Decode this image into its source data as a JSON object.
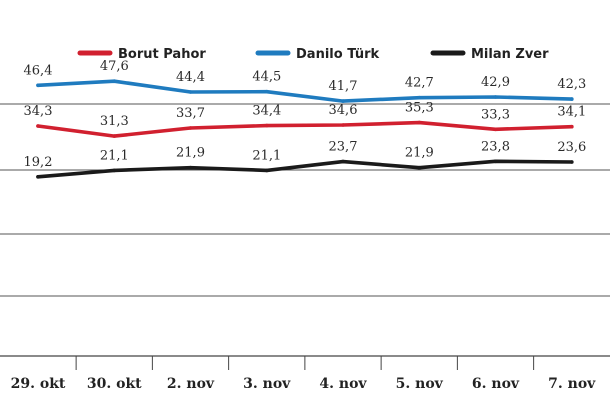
{
  "chart_data": {
    "type": "line",
    "categories": [
      "29. okt",
      "30. okt",
      "2. nov",
      "3. nov",
      "4. nov",
      "5. nov",
      "6. nov",
      "7. nov"
    ],
    "series": [
      {
        "name": "Borut Pahor",
        "color": "#d1202f",
        "values": [
          34.3,
          31.3,
          33.7,
          34.4,
          34.6,
          35.3,
          33.3,
          34.1
        ],
        "labels": [
          "34,3",
          "31,3",
          "33,7",
          "34,4",
          "34,6",
          "35,3",
          "33,3",
          "34,1"
        ]
      },
      {
        "name": "Danilo Türk",
        "color": "#1f7bbf",
        "values": [
          46.4,
          47.6,
          44.4,
          44.5,
          41.7,
          42.7,
          42.9,
          42.3
        ],
        "labels": [
          "46,4",
          "47,6",
          "44,4",
          "44,5",
          "41,7",
          "42,7",
          "42,9",
          "42,3"
        ]
      },
      {
        "name": "Milan Zver",
        "color": "#1a1a1a",
        "values": [
          19.2,
          21.1,
          21.9,
          21.1,
          23.7,
          21.9,
          23.8,
          23.6
        ],
        "labels": [
          "19,2",
          "21,1",
          "21,9",
          "21,1",
          "23,7",
          "21,9",
          "23,8",
          "23,6"
        ]
      }
    ],
    "xlabel": "",
    "ylabel": "",
    "grid": true,
    "legend_placement": "top-center"
  }
}
